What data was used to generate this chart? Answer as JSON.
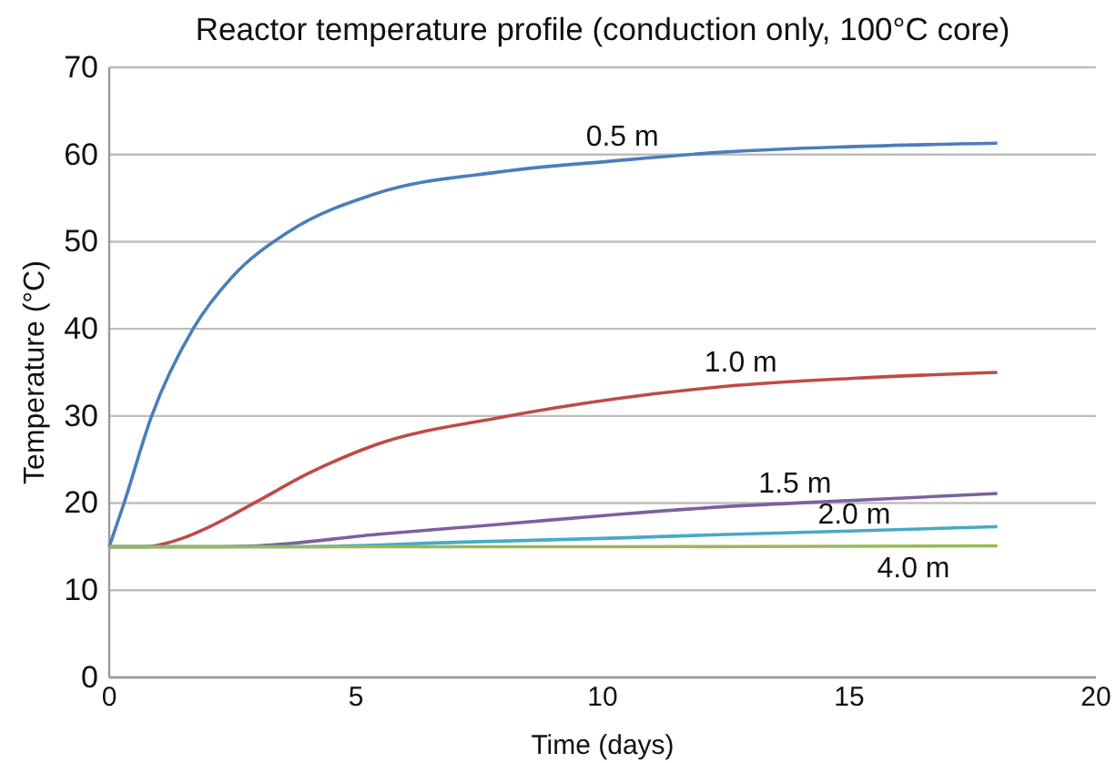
{
  "chart_data": {
    "type": "line",
    "title": "Reactor temperature profile (conduction only, 100°C core)",
    "xlabel": "Time (days)",
    "ylabel": "Temperature (°C)",
    "xlim": [
      0,
      20
    ],
    "xticks": [
      0,
      5,
      10,
      15,
      20
    ],
    "ylim": [
      0,
      70
    ],
    "yticks": [
      0,
      10,
      20,
      30,
      40,
      50,
      60,
      70
    ],
    "grid": "y",
    "marker": "none",
    "line_style": "solid",
    "series": [
      {
        "name": "0.5 m",
        "color": "#4a7ebb",
        "x": [
          0,
          0.3,
          0.86,
          1.7,
          2.5,
          3.6,
          5.4,
          7.9,
          10.3,
          12.5,
          15,
          18
        ],
        "values": [
          15,
          20,
          30,
          40,
          46,
          51,
          55.5,
          58,
          59.3,
          60.3,
          60.9,
          61.3
        ]
      },
      {
        "name": "1.0 m",
        "color": "#be4b48",
        "x": [
          0,
          0.7,
          1.5,
          2,
          3,
          4,
          5.4,
          7.9,
          10.3,
          12.5,
          15,
          18
        ],
        "values": [
          15,
          15,
          16,
          17.2,
          20.2,
          23.3,
          26.7,
          29.8,
          32,
          33.4,
          34.3,
          35
        ]
      },
      {
        "name": "1.5 m",
        "color": "#7d60a0",
        "x": [
          0,
          2,
          3,
          5.4,
          8,
          10.3,
          12.5,
          15,
          18
        ],
        "values": [
          15,
          15,
          15.1,
          16.4,
          17.6,
          18.7,
          19.6,
          20.3,
          21.1
        ]
      },
      {
        "name": "2.0 m",
        "color": "#46aac5",
        "x": [
          0,
          4,
          7,
          10.3,
          12.5,
          15,
          18
        ],
        "values": [
          15,
          15,
          15.5,
          16,
          16.4,
          16.8,
          17.3
        ]
      },
      {
        "name": "4.0 m",
        "color": "#98b954",
        "x": [
          0,
          10,
          18
        ],
        "values": [
          15,
          15,
          15.1
        ]
      }
    ]
  }
}
